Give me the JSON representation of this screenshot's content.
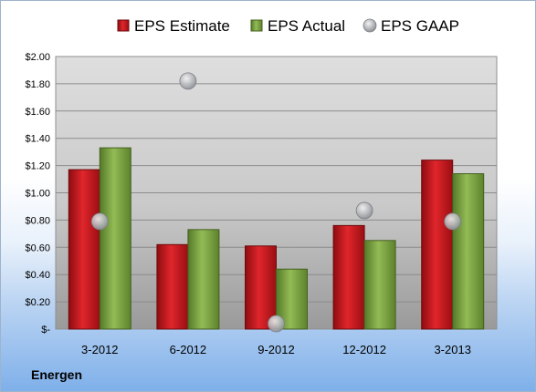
{
  "chart_data": {
    "type": "bar",
    "categories": [
      "3-2012",
      "6-2012",
      "9-2012",
      "12-2012",
      "3-2013"
    ],
    "series": [
      {
        "name": "EPS Estimate",
        "kind": "bar",
        "color": "#c8141a",
        "values": [
          1.17,
          0.62,
          0.61,
          0.76,
          1.24
        ]
      },
      {
        "name": "EPS Actual",
        "kind": "bar",
        "color": "#78a03c",
        "values": [
          1.33,
          0.73,
          0.44,
          0.65,
          1.14
        ]
      },
      {
        "name": "EPS GAAP",
        "kind": "marker",
        "color": "#b5b8bd",
        "values": [
          0.79,
          1.82,
          0.04,
          0.87,
          0.79
        ]
      }
    ],
    "ylim": [
      0,
      2.0
    ],
    "yticks": [
      "$-",
      "$0.20",
      "$0.40",
      "$0.60",
      "$0.80",
      "$1.00",
      "$1.20",
      "$1.40",
      "$1.60",
      "$1.80",
      "$2.00"
    ],
    "legend_position": "top",
    "grid": true
  },
  "footer": {
    "company": "Energen"
  }
}
